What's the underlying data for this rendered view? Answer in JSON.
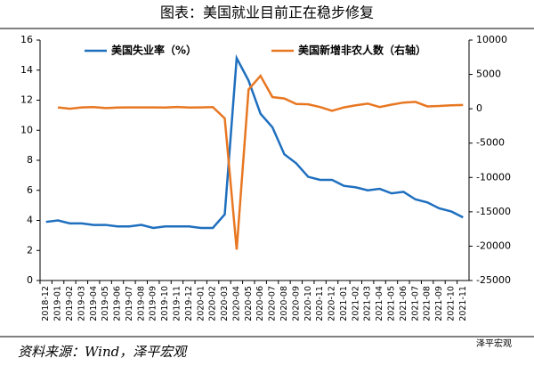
{
  "chart_data": {
    "type": "line",
    "title": "图表：美国就业目前正在稳步修复",
    "source": "资料来源：Wind，泽平宏观",
    "watermark": "泽平宏观",
    "categories": [
      "2018-12",
      "2019-01",
      "2019-02",
      "2019-03",
      "2019-04",
      "2019-05",
      "2019-06",
      "2019-07",
      "2019-08",
      "2019-09",
      "2019-10",
      "2019-11",
      "2019-12",
      "2020-01",
      "2020-02",
      "2020-03",
      "2020-04",
      "2020-05",
      "2020-06",
      "2020-07",
      "2020-08",
      "2020-09",
      "2020-10",
      "2020-11",
      "2020-12",
      "2021-01",
      "2021-02",
      "2021-03",
      "2021-04",
      "2021-05",
      "2021-06",
      "2021-07",
      "2021-08",
      "2021-09",
      "2021-10",
      "2021-11"
    ],
    "series": [
      {
        "name": "美国失业率（%）",
        "color": "#1f6fbf",
        "values": [
          3.9,
          4.0,
          3.8,
          3.8,
          3.7,
          3.7,
          3.6,
          3.6,
          3.7,
          3.5,
          3.6,
          3.6,
          3.6,
          3.5,
          3.5,
          4.4,
          14.8,
          13.3,
          11.1,
          10.2,
          8.4,
          7.8,
          6.9,
          6.7,
          6.7,
          6.3,
          6.2,
          6.0,
          6.1,
          5.8,
          5.9,
          5.4,
          5.2,
          4.8,
          4.6,
          4.2
        ]
      },
      {
        "name": "美国新增非农人数（右轴）",
        "color": "#e87722",
        "axis": "y2",
        "values": [
          null,
          200,
          0,
          200,
          250,
          100,
          180,
          190,
          200,
          200,
          180,
          260,
          180,
          200,
          250,
          -1400,
          -20500,
          2800,
          4800,
          1700,
          1500,
          700,
          650,
          250,
          -300,
          200,
          500,
          750,
          250,
          600,
          900,
          1000,
          350,
          400,
          500,
          550
        ]
      }
    ],
    "ylim": [
      0,
      16
    ],
    "yticks": [
      0,
      2,
      4,
      6,
      8,
      10,
      12,
      14,
      16
    ],
    "y2lim": [
      -25000,
      10000
    ],
    "y2ticks": [
      -25000,
      -20000,
      -15000,
      -10000,
      -5000,
      0,
      5000,
      10000
    ]
  }
}
